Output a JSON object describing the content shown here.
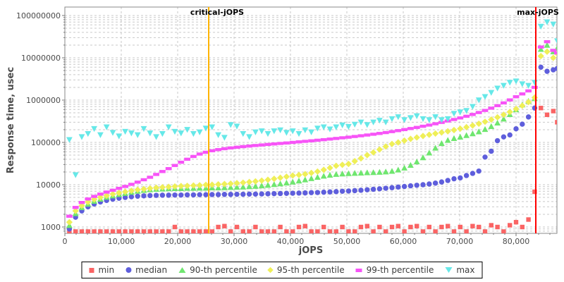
{
  "chart_data": {
    "type": "scatter",
    "title": "",
    "xlabel": "jOPS",
    "ylabel": "Response time, usec",
    "grid": true,
    "legend_position": "bottom",
    "x_axis": {
      "min": 0,
      "max": 87250,
      "minor_step": 2000,
      "ticks": [
        {
          "v": 0,
          "label": "0"
        },
        {
          "v": 10000,
          "label": "10,000"
        },
        {
          "v": 20000,
          "label": "20,000"
        },
        {
          "v": 30000,
          "label": "30,000"
        },
        {
          "v": 40000,
          "label": "40,000"
        },
        {
          "v": 50000,
          "label": "50,000"
        },
        {
          "v": 60000,
          "label": "60,000"
        },
        {
          "v": 70000,
          "label": "70,000"
        },
        {
          "v": 80000,
          "label": "80,000"
        }
      ]
    },
    "y_axis": {
      "scale": "log",
      "min": 708,
      "max": 158000000,
      "ticks": [
        {
          "v": 1000,
          "label": "1000"
        },
        {
          "v": 10000,
          "label": "10000"
        },
        {
          "v": 100000,
          "label": "100000"
        },
        {
          "v": 1000000,
          "label": "1000000"
        },
        {
          "v": 10000000,
          "label": "10000000"
        },
        {
          "v": 100000000,
          "label": "100000000"
        }
      ]
    },
    "annotations": [
      {
        "label": "critical-jOPS",
        "x": 25500,
        "color": "#FFB400"
      },
      {
        "label": "max-jOPS",
        "x": 83500,
        "color": "#FF0000"
      }
    ],
    "x": [
      800,
      1900,
      3000,
      4100,
      5200,
      6300,
      7400,
      8500,
      9600,
      10700,
      11800,
      12900,
      14000,
      15100,
      16200,
      17300,
      18400,
      19500,
      20600,
      21700,
      22800,
      23900,
      25000,
      26100,
      27200,
      28300,
      29400,
      30500,
      31600,
      32700,
      33800,
      34900,
      36000,
      37100,
      38200,
      39300,
      40400,
      41500,
      42600,
      43700,
      44800,
      45900,
      47000,
      48100,
      49200,
      50300,
      51400,
      52500,
      53600,
      54700,
      55800,
      56900,
      58000,
      59100,
      60200,
      61300,
      62400,
      63500,
      64600,
      65700,
      66800,
      67900,
      69000,
      70100,
      71200,
      72300,
      73400,
      74500,
      75600,
      76700,
      77800,
      78900,
      80000,
      81100,
      82200,
      83300,
      84400,
      85500,
      86600,
      87300
    ],
    "series": [
      {
        "name": "min",
        "marker": "square",
        "color": "#FA6464",
        "stem_below": 900,
        "values": [
          780,
          780,
          780,
          780,
          780,
          780,
          780,
          780,
          780,
          780,
          780,
          780,
          780,
          780,
          780,
          780,
          780,
          1000,
          780,
          780,
          780,
          780,
          780,
          780,
          1000,
          1050,
          780,
          1000,
          780,
          780,
          1000,
          780,
          780,
          780,
          1000,
          780,
          780,
          1000,
          1050,
          780,
          780,
          1000,
          780,
          780,
          1000,
          780,
          780,
          1000,
          1050,
          780,
          1000,
          780,
          1000,
          1050,
          780,
          1000,
          1050,
          780,
          1000,
          780,
          1000,
          1050,
          780,
          1000,
          780,
          1050,
          1000,
          780,
          1100,
          1000,
          780,
          1100,
          1300,
          1000,
          1500,
          6800,
          650000,
          450000,
          550000,
          300000
        ]
      },
      {
        "name": "median",
        "marker": "circle",
        "color": "#5E5EDC",
        "values": [
          900,
          1700,
          2400,
          3000,
          3500,
          3900,
          4250,
          4550,
          4800,
          5000,
          5200,
          5350,
          5450,
          5550,
          5600,
          5650,
          5650,
          5700,
          5700,
          5750,
          5750,
          5800,
          5800,
          5850,
          5850,
          5900,
          5900,
          5950,
          5950,
          6000,
          6000,
          6050,
          6100,
          6150,
          6200,
          6250,
          6300,
          6350,
          6400,
          6500,
          6550,
          6650,
          6750,
          6850,
          7000,
          7100,
          7250,
          7400,
          7600,
          7800,
          8000,
          8250,
          8500,
          8800,
          9100,
          9400,
          9700,
          10000,
          10400,
          10900,
          11600,
          12600,
          13800,
          14500,
          16500,
          18500,
          21000,
          45000,
          62000,
          110000,
          135000,
          150000,
          210000,
          270000,
          400000,
          650000,
          6000000,
          4800000,
          5200000,
          5600000
        ]
      },
      {
        "name": "90-th percentile",
        "marker": "triangle-up",
        "color": "#6FE66F",
        "values": [
          1100,
          2100,
          2900,
          3500,
          4100,
          4600,
          5100,
          5500,
          5900,
          6300,
          6700,
          7100,
          7400,
          7700,
          7900,
          8000,
          8100,
          8200,
          8200,
          8300,
          8300,
          8400,
          8400,
          8500,
          8500,
          8600,
          8700,
          8800,
          8900,
          9100,
          9300,
          9500,
          9800,
          10200,
          10600,
          11100,
          11700,
          12400,
          13200,
          14100,
          15100,
          16100,
          17000,
          17700,
          18200,
          18500,
          18800,
          19100,
          19400,
          19600,
          19900,
          20300,
          21000,
          22500,
          25000,
          29000,
          35000,
          44000,
          57000,
          74000,
          95000,
          113000,
          125000,
          135000,
          147000,
          162000,
          180000,
          205000,
          240000,
          290000,
          360000,
          460000,
          600000,
          780000,
          950000,
          1100000,
          16000000,
          20000000,
          14000000,
          17000000
        ]
      },
      {
        "name": "95-th percentile",
        "marker": "diamond",
        "color": "#EFEF58",
        "values": [
          1300,
          2400,
          3200,
          3900,
          4500,
          5000,
          5500,
          6000,
          6400,
          6800,
          7200,
          7600,
          7900,
          8200,
          8500,
          8700,
          8900,
          9100,
          9300,
          9400,
          9600,
          9700,
          9900,
          10000,
          10200,
          10400,
          10600,
          10900,
          11200,
          11600,
          12000,
          12500,
          13100,
          13800,
          14600,
          15500,
          16500,
          17000,
          17800,
          19000,
          20500,
          22500,
          25000,
          28000,
          29500,
          31000,
          36000,
          42000,
          50000,
          58000,
          68000,
          80000,
          92000,
          100000,
          110000,
          121000,
          131000,
          142000,
          152000,
          162000,
          172000,
          183000,
          196000,
          211000,
          229000,
          251000,
          277000,
          308000,
          346000,
          393000,
          452000,
          526000,
          620000,
          740000,
          900000,
          1150000,
          11000000,
          14000000,
          10000000,
          12500000
        ]
      },
      {
        "name": "99-th percentile",
        "marker": "hbar",
        "color": "#F753F7",
        "values": [
          1800,
          2900,
          3800,
          4600,
          5300,
          6000,
          6700,
          7400,
          8200,
          9100,
          10200,
          11500,
          13100,
          15000,
          17500,
          20500,
          24000,
          28500,
          34000,
          40000,
          46500,
          53000,
          58500,
          63500,
          67500,
          71000,
          74000,
          77000,
          79500,
          82000,
          84500,
          87000,
          89500,
          92000,
          94500,
          97000,
          100000,
          103000,
          106000,
          109000,
          112500,
          116000,
          120000,
          124000,
          128500,
          133000,
          138000,
          143500,
          149500,
          156000,
          163000,
          171000,
          180000,
          190000,
          201000,
          213000,
          226000,
          241000,
          257000,
          276000,
          297000,
          321000,
          348000,
          379000,
          415000,
          458000,
          509000,
          570000,
          645000,
          740000,
          860000,
          1010000,
          1200000,
          1400000,
          1650000,
          2000000,
          18000000,
          24000000,
          15000000,
          13000000
        ]
      },
      {
        "name": "max",
        "marker": "triangle-down",
        "color": "#66E8E8",
        "values": [
          115000,
          17000,
          135000,
          160000,
          210000,
          150000,
          230000,
          170000,
          140000,
          180000,
          165000,
          150000,
          210000,
          165000,
          135000,
          160000,
          230000,
          180000,
          165000,
          200000,
          160000,
          175000,
          215000,
          230000,
          150000,
          130000,
          260000,
          240000,
          160000,
          135000,
          175000,
          185000,
          160000,
          185000,
          195000,
          170000,
          185000,
          160000,
          195000,
          175000,
          215000,
          230000,
          205000,
          230000,
          255000,
          235000,
          265000,
          300000,
          260000,
          300000,
          330000,
          300000,
          360000,
          400000,
          340000,
          380000,
          420000,
          360000,
          340000,
          400000,
          340000,
          360000,
          480000,
          520000,
          560000,
          700000,
          1000000,
          1200000,
          1500000,
          1900000,
          2200000,
          2600000,
          2800000,
          2400000,
          2200000,
          2600000,
          55000000,
          70000000,
          62000000,
          25000000
        ]
      }
    ]
  }
}
